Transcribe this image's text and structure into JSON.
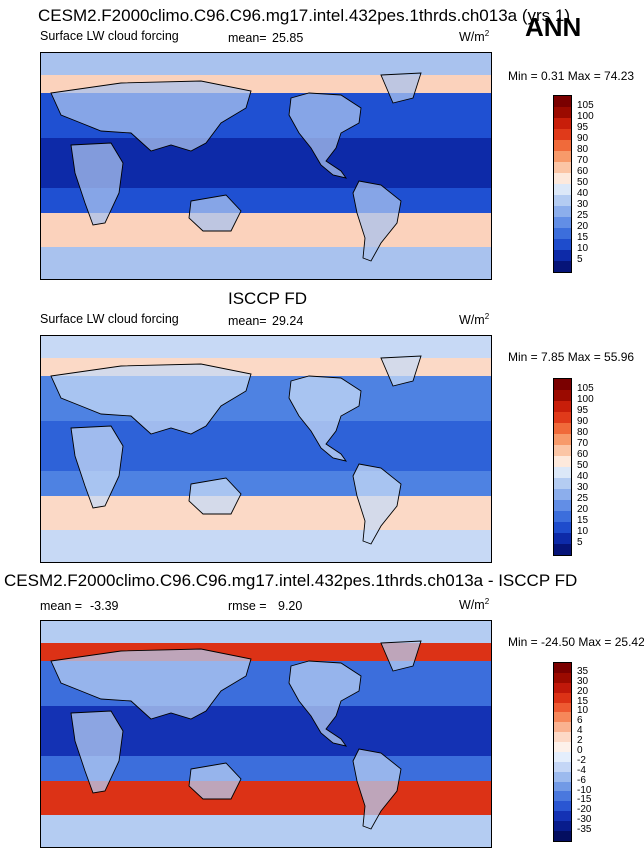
{
  "header": {
    "season": "ANN"
  },
  "panels": [
    {
      "title": "CESM2.F2000climo.C96.C96.mg17.intel.432pes.1thrds.ch013a (yrs 1)",
      "variable": "Surface LW cloud forcing",
      "stat_label": "mean=",
      "stat_value": "25.85",
      "units": "W/m",
      "units_exp": "2",
      "minmax": "Min =  0.31 Max =  74.23",
      "colorbar": {
        "levels": [
          "105",
          "100",
          "95",
          "90",
          "80",
          "70",
          "60",
          "50",
          "40",
          "30",
          "25",
          "20",
          "15",
          "10",
          "5"
        ],
        "colors": [
          "#7a0000",
          "#9b0a00",
          "#c81e0a",
          "#e03a1a",
          "#f06a3a",
          "#f79a6a",
          "#fbc5a5",
          "#fde9dc",
          "#dce8f8",
          "#b4ccf2",
          "#8caeec",
          "#628ee6",
          "#3c6edc",
          "#1e4ccc",
          "#0d2aa8",
          "#061478"
        ]
      },
      "field_colors": {
        "ocean": "#1f50d2",
        "band": "#fbd2bc",
        "land": "#a9c2ee",
        "deep": "#0d2aa8"
      }
    },
    {
      "title": "ISCCP FD",
      "variable": "Surface LW cloud forcing",
      "stat_label": "mean=",
      "stat_value": "29.24",
      "units": "W/m",
      "units_exp": "2",
      "minmax": "Min =  7.85 Max =  55.96",
      "colorbar": {
        "levels": [
          "105",
          "100",
          "95",
          "90",
          "80",
          "70",
          "60",
          "50",
          "40",
          "30",
          "25",
          "20",
          "15",
          "10",
          "5"
        ],
        "colors": [
          "#7a0000",
          "#9b0a00",
          "#c81e0a",
          "#e03a1a",
          "#f06a3a",
          "#f79a6a",
          "#fbc5a5",
          "#fde9dc",
          "#dce8f8",
          "#b4ccf2",
          "#8caeec",
          "#628ee6",
          "#3c6edc",
          "#1e4ccc",
          "#0d2aa8",
          "#061478"
        ]
      },
      "field_colors": {
        "ocean": "#4e82e2",
        "band": "#fbd9c6",
        "land": "#c7d9f5",
        "deep": "#2e62d8"
      }
    },
    {
      "title": "CESM2.F2000climo.C96.C96.mg17.intel.432pes.1thrds.ch013a - ISCCP FD",
      "variable": "",
      "stat_label": "mean =",
      "stat_value": "-3.39",
      "stat2_label": "rmse =",
      "stat2_value": "9.20",
      "units": "W/m",
      "units_exp": "2",
      "minmax": "Min = -24.50 Max =  25.42",
      "colorbar": {
        "levels": [
          "35",
          "30",
          "20",
          "15",
          "10",
          "6",
          "4",
          "2",
          "0",
          "-2",
          "-4",
          "-6",
          "-10",
          "-15",
          "-20",
          "-30",
          "-35"
        ],
        "colors": [
          "#7a0000",
          "#9b0a00",
          "#c0180a",
          "#dc3216",
          "#ee5a32",
          "#f6875a",
          "#fab290",
          "#fdd9c6",
          "#fdf1ea",
          "#e4eefc",
          "#c4d6f6",
          "#9cbaee",
          "#729ae6",
          "#4a78de",
          "#2a56d2",
          "#1432b4",
          "#081c8c",
          "#040e60"
        ]
      },
      "field_colors": {
        "ocean": "#3c6edc",
        "band": "#dc3216",
        "land": "#b4ccf2",
        "deep": "#1432b4"
      }
    }
  ]
}
